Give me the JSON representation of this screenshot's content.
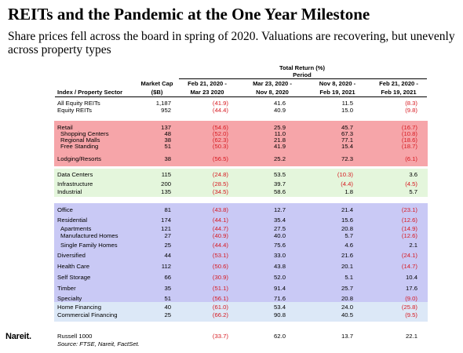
{
  "title": "REITs and the Pandemic at the One Year Milestone",
  "subtitle": "Share prices fell across the board in spring of 2020. Valuations are recovering, but unevenly across property types",
  "logo": "Nareit.",
  "source": "Source: FTSE, Nareit, FactSet.",
  "colors": {
    "negative": "#d71920",
    "band_broad": "#ffffff",
    "band_retail": "#f6a5a9",
    "band_tech": "#e4f6dc",
    "band_other": "#c9c9f5",
    "band_financing": "#dce8f7"
  },
  "chart_data": {
    "type": "table",
    "title": "REITs and the Pandemic at the One Year Milestone",
    "subtitle": "Share prices fell across the board in spring of 2020. Valuations are recovering, but unevenly across property types",
    "group_header": "Total Return (%)",
    "group_subheader": "Period",
    "columns": [
      {
        "l1": "",
        "l2": "Index / Property Sector"
      },
      {
        "l1": "Market Cap",
        "l2": "($B)"
      },
      {
        "l1": "Feb 21, 2020 -",
        "l2": "Mar 23 2020"
      },
      {
        "l1": "Mar 23, 2020 -",
        "l2": "Nov 8, 2020"
      },
      {
        "l1": "Nov 8, 2020 -",
        "l2": "Feb 19, 2021"
      },
      {
        "l1": "Feb 21, 2020 -",
        "l2": "Feb 19, 2021"
      }
    ],
    "rows": [
      {
        "name": "All Equity REITs",
        "cap": "1,187",
        "p1": "(41.9)",
        "p2": "41.6",
        "p3": "11.5",
        "p4": "(8.3)",
        "group": "broad",
        "indent": false
      },
      {
        "name": "Equity REITs",
        "cap": "952",
        "p1": "(44.4)",
        "p2": "40.9",
        "p3": "15.0",
        "p4": "(9.8)",
        "group": "broad",
        "indent": false
      },
      {
        "name": "Retail",
        "cap": "137",
        "p1": "(54.6)",
        "p2": "25.9",
        "p3": "45.7",
        "p4": "(16.7)",
        "group": "retail",
        "indent": false
      },
      {
        "name": "Shopping Centers",
        "cap": "48",
        "p1": "(52.0)",
        "p2": "11.0",
        "p3": "67.3",
        "p4": "(10.8)",
        "group": "retail",
        "indent": true
      },
      {
        "name": "Regional Malls",
        "cap": "38",
        "p1": "(62.3)",
        "p2": "21.8",
        "p3": "77.1",
        "p4": "(18.6)",
        "group": "retail",
        "indent": true
      },
      {
        "name": "Free Standing",
        "cap": "51",
        "p1": "(50.3)",
        "p2": "41.9",
        "p3": "15.4",
        "p4": "(18.7)",
        "group": "retail",
        "indent": true
      },
      {
        "name": "Lodging/Resorts",
        "cap": "38",
        "p1": "(56.5)",
        "p2": "25.2",
        "p3": "72.3",
        "p4": "(6.1)",
        "group": "retail",
        "indent": false
      },
      {
        "name": "Data Centers",
        "cap": "115",
        "p1": "(24.8)",
        "p2": "53.5",
        "p3": "(10.3)",
        "p4": "3.6",
        "group": "tech",
        "indent": false
      },
      {
        "name": "Infrastructure",
        "cap": "200",
        "p1": "(28.5)",
        "p2": "39.7",
        "p3": "(4.4)",
        "p4": "(4.5)",
        "group": "tech",
        "indent": false
      },
      {
        "name": "Industrial",
        "cap": "135",
        "p1": "(34.5)",
        "p2": "58.6",
        "p3": "1.8",
        "p4": "5.7",
        "group": "tech",
        "indent": false
      },
      {
        "name": "Office",
        "cap": "81",
        "p1": "(43.8)",
        "p2": "12.7",
        "p3": "21.4",
        "p4": "(23.1)",
        "group": "other",
        "indent": false
      },
      {
        "name": "Residential",
        "cap": "174",
        "p1": "(44.1)",
        "p2": "35.4",
        "p3": "15.6",
        "p4": "(12.6)",
        "group": "other",
        "indent": false
      },
      {
        "name": "Apartments",
        "cap": "121",
        "p1": "(44.7)",
        "p2": "27.5",
        "p3": "20.8",
        "p4": "(14.9)",
        "group": "other",
        "indent": true
      },
      {
        "name": "Manufactured Homes",
        "cap": "27",
        "p1": "(40.9)",
        "p2": "40.0",
        "p3": "5.7",
        "p4": "(12.6)",
        "group": "other",
        "indent": true
      },
      {
        "name": "Single Family Homes",
        "cap": "25",
        "p1": "(44.4)",
        "p2": "75.6",
        "p3": "4.6",
        "p4": "2.1",
        "group": "other",
        "indent": true
      },
      {
        "name": "Diversified",
        "cap": "44",
        "p1": "(53.1)",
        "p2": "33.0",
        "p3": "21.6",
        "p4": "(24.1)",
        "group": "other",
        "indent": false
      },
      {
        "name": "Health Care",
        "cap": "112",
        "p1": "(50.6)",
        "p2": "43.8",
        "p3": "20.1",
        "p4": "(14.7)",
        "group": "other",
        "indent": false
      },
      {
        "name": "Self Storage",
        "cap": "66",
        "p1": "(30.9)",
        "p2": "52.0",
        "p3": "5.1",
        "p4": "10.4",
        "group": "other",
        "indent": false
      },
      {
        "name": "Timber",
        "cap": "35",
        "p1": "(51.1)",
        "p2": "91.4",
        "p3": "25.7",
        "p4": "17.6",
        "group": "other",
        "indent": false
      },
      {
        "name": "Specialty",
        "cap": "51",
        "p1": "(56.1)",
        "p2": "71.6",
        "p3": "20.8",
        "p4": "(9.0)",
        "group": "other",
        "indent": false
      },
      {
        "name": "Home Financing",
        "cap": "40",
        "p1": "(61.0)",
        "p2": "53.4",
        "p3": "24.0",
        "p4": "(25.8)",
        "group": "financing",
        "indent": false
      },
      {
        "name": "Commercial Financing",
        "cap": "25",
        "p1": "(66.2)",
        "p2": "90.8",
        "p3": "40.5",
        "p4": "(9.5)",
        "group": "financing",
        "indent": false
      },
      {
        "name": "Russell 1000",
        "cap": "",
        "p1": "(33.7)",
        "p2": "62.0",
        "p3": "13.7",
        "p4": "22.1",
        "group": "benchmark",
        "indent": false
      }
    ]
  }
}
